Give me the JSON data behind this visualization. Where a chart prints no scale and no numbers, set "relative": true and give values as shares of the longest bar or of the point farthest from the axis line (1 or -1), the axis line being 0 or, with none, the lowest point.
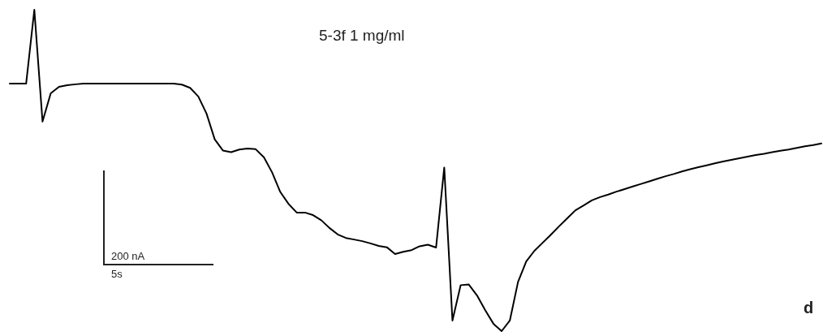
{
  "chart_data": {
    "type": "line",
    "title": "5-3f  1 mg/ml",
    "relative": true,
    "grid": false,
    "legend": false,
    "marker": "none",
    "line_style": "solid",
    "annotations": [
      "200 nA",
      "5s",
      "d"
    ],
    "categories": [
      null,
      null,
      null,
      null,
      null,
      null,
      null,
      null,
      null,
      null,
      null,
      null,
      null,
      null,
      null,
      null,
      null,
      null,
      null,
      null,
      null,
      null,
      null,
      null,
      null,
      null,
      null,
      null,
      null,
      null,
      null,
      null,
      null,
      null,
      null,
      null,
      null,
      null,
      null,
      null,
      null,
      null,
      null,
      null,
      null,
      null,
      null,
      null,
      null,
      null,
      null,
      null,
      null,
      null,
      null,
      null,
      null,
      null,
      null,
      null,
      null,
      null,
      null,
      null,
      null,
      null,
      null,
      null,
      null,
      null,
      null,
      null,
      null,
      null,
      null,
      null,
      null,
      null,
      null,
      null,
      null,
      null,
      null,
      null,
      null,
      null,
      null,
      null,
      null,
      null,
      null,
      null,
      null,
      null,
      null,
      null,
      null,
      null,
      null,
      null
    ],
    "series": [
      {
        "color": "#000000",
        "values": [
          0.77,
          0.77,
          0.77,
          1,
          0.652,
          0.74,
          0.76,
          0.765,
          0.768,
          0.77,
          0.77,
          0.77,
          0.77,
          0.77,
          0.77,
          0.77,
          0.77,
          0.77,
          0.77,
          0.77,
          0.77,
          0.767,
          0.757,
          0.73,
          0.677,
          0.597,
          0.562,
          0.557,
          0.565,
          0.568,
          0.566,
          0.541,
          0.494,
          0.433,
          0.396,
          0.369,
          0.369,
          0.361,
          0.345,
          0.321,
          0.301,
          0.29,
          0.285,
          0.28,
          0.273,
          0.265,
          0.261,
          0.24,
          0.247,
          0.252,
          0.264,
          0.269,
          0.26,
          0.509,
          0.033,
          0.143,
          0.145,
          0.111,
          0.065,
          0.023,
          0,
          0.033,
          0.153,
          0.217,
          0.25,
          0.275,
          0.3,
          0.326,
          0.351,
          0.376,
          0.391,
          0.407,
          0.417,
          0.425,
          0.434,
          0.442,
          0.45,
          0.458,
          0.466,
          0.474,
          0.482,
          0.489,
          0.497,
          0.504,
          0.51,
          0.516,
          0.522,
          0.528,
          0.533,
          0.538,
          0.543,
          0.548,
          0.552,
          0.557,
          0.561,
          0.565,
          0.57,
          0.575,
          0.579,
          0.584
        ]
      }
    ]
  }
}
